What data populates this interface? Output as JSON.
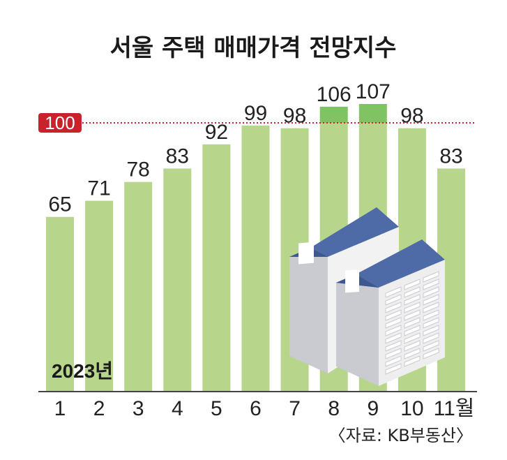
{
  "title": "서울 주택 매매가격 전망지수",
  "year_label": "2023년",
  "source": "〈자료: KB부동산〉",
  "reference": {
    "value": 100,
    "label": "100",
    "color": "#c8232c"
  },
  "colors": {
    "bar": "#b7d68b",
    "bar_highlight": "#7fc363",
    "axis": "#444444"
  },
  "chart_data": {
    "type": "bar",
    "categories": [
      "1",
      "2",
      "3",
      "4",
      "5",
      "6",
      "7",
      "8",
      "9",
      "10",
      "11월"
    ],
    "values": [
      65,
      71,
      78,
      83,
      92,
      99,
      98,
      106,
      107,
      98,
      83
    ],
    "highlight_above": 100,
    "title": "서울 주택 매매가격 전망지수",
    "xlabel": "2023년",
    "ylabel": "",
    "ylim": [
      0,
      107
    ]
  }
}
